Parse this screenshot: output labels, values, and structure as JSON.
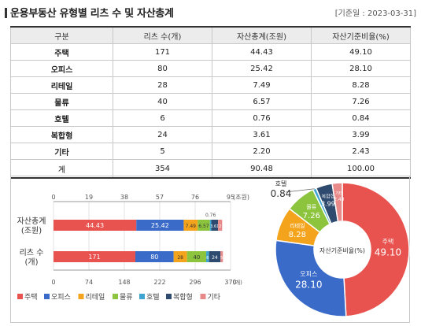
{
  "header": {
    "title": "운용부동산 유형별 리츠 수 및 자산총계",
    "date": "[기준일 : 2023-03-31]"
  },
  "table": {
    "headers": [
      "구분",
      "리츠 수(개)",
      "자산총계(조원)",
      "자산기준비율(%)"
    ],
    "rows": [
      {
        "cat": "주택",
        "count": "171",
        "assets": "44.43",
        "ratio": "49.10"
      },
      {
        "cat": "오피스",
        "count": "80",
        "assets": "25.42",
        "ratio": "28.10"
      },
      {
        "cat": "리테일",
        "count": "28",
        "assets": "7.49",
        "ratio": "8.28"
      },
      {
        "cat": "물류",
        "count": "40",
        "assets": "6.57",
        "ratio": "7.26"
      },
      {
        "cat": "호텔",
        "count": "6",
        "assets": "0.76",
        "ratio": "0.84"
      },
      {
        "cat": "복합형",
        "count": "24",
        "assets": "3.61",
        "ratio": "3.99"
      },
      {
        "cat": "기타",
        "count": "5",
        "assets": "2.20",
        "ratio": "2.43"
      },
      {
        "cat": "계",
        "count": "354",
        "assets": "90.48",
        "ratio": "100.00"
      }
    ]
  },
  "colors": [
    "#e8534f",
    "#3a6bc9",
    "#f4a31c",
    "#8cc43d",
    "#3fa5cf",
    "#2e4a6e",
    "#e88a8a"
  ],
  "chart_data": [
    {
      "type": "bar",
      "orientation": "horizontal",
      "stacked": true,
      "rows": [
        {
          "label_1": "자산총계",
          "label_2": "(조원)"
        },
        {
          "label_1": "리츠 수",
          "label_2": "(개)"
        }
      ],
      "series": [
        {
          "name": "주택",
          "values": [
            44.43,
            171
          ]
        },
        {
          "name": "오피스",
          "values": [
            25.42,
            80
          ]
        },
        {
          "name": "리테일",
          "values": [
            7.49,
            28
          ]
        },
        {
          "name": "물류",
          "values": [
            6.57,
            40
          ]
        },
        {
          "name": "호텔",
          "values": [
            0.76,
            6
          ]
        },
        {
          "name": "복합형",
          "values": [
            3.61,
            24
          ]
        },
        {
          "name": "기타",
          "values": [
            2.2,
            5
          ]
        }
      ],
      "value_labels": [
        [
          "44.43",
          "25.42",
          "7.49",
          "6.57",
          "0.76",
          "3.61",
          "2"
        ],
        [
          "171",
          "80",
          "28",
          "40",
          "6",
          "24",
          "5"
        ]
      ],
      "top_axis": {
        "ticks": [
          "0",
          "19",
          "38",
          "57",
          "76",
          "95"
        ],
        "unit": "(조원)",
        "range": [
          0,
          95
        ]
      },
      "bottom_axis": {
        "ticks": [
          "0",
          "74",
          "148",
          "222",
          "296",
          "370"
        ],
        "unit": "(개)",
        "range": [
          0,
          370
        ]
      },
      "legend": {
        "position": "bottom",
        "items": [
          "주택",
          "오피스",
          "리테일",
          "물류",
          "호텔",
          "복합형",
          "기타"
        ]
      }
    },
    {
      "type": "pie",
      "donut": true,
      "center_label": "자산기준비율(%)",
      "slices": [
        {
          "name": "주택",
          "value": 49.1
        },
        {
          "name": "오피스",
          "value": 28.1
        },
        {
          "name": "리테일",
          "value": 8.28
        },
        {
          "name": "물류",
          "value": 7.26
        },
        {
          "name": "호텔",
          "value": 0.84
        },
        {
          "name": "복합형",
          "value": 3.99
        },
        {
          "name": "기타",
          "value": 2.43
        }
      ],
      "labels": [
        {
          "name": "주택",
          "value": "49.10"
        },
        {
          "name": "오피스",
          "value": "28.10"
        },
        {
          "name": "리테일",
          "value": "8.28"
        },
        {
          "name": "물류",
          "value": "7.26"
        },
        {
          "name": "호텔",
          "value": "0.84"
        },
        {
          "name": "복합형",
          "value": "3.99"
        },
        {
          "name": "기타",
          "value": "2.43"
        }
      ]
    }
  ]
}
